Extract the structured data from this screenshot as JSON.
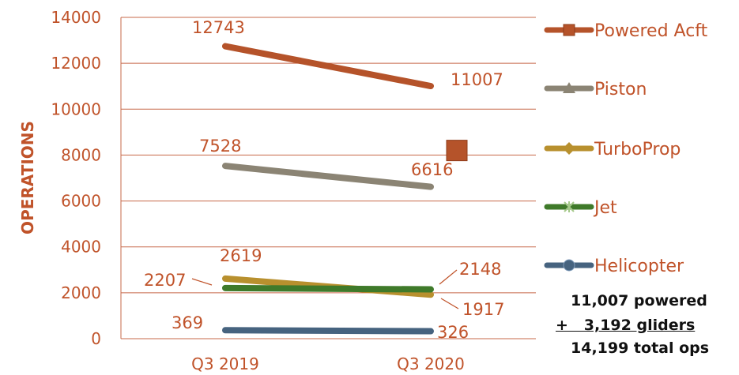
{
  "chart_data": {
    "type": "line",
    "categories": [
      "Q3 2019",
      "Q3 2020"
    ],
    "ylabel": "OPERATIONS",
    "ylim": [
      0,
      14000
    ],
    "yticks": [
      0,
      2000,
      4000,
      6000,
      8000,
      10000,
      12000,
      14000
    ],
    "grid": true,
    "legend": "right",
    "series": [
      {
        "name": "Powered Acft",
        "values": [
          12743,
          11007
        ],
        "color": "#b5532a",
        "marker": "square"
      },
      {
        "name": "Piston",
        "values": [
          7528,
          6616
        ],
        "color": "#8b8474",
        "marker": "triangle"
      },
      {
        "name": "TurboProp",
        "values": [
          2619,
          1917
        ],
        "color": "#b8902e",
        "marker": "diamond"
      },
      {
        "name": "Jet",
        "values": [
          2207,
          2148
        ],
        "color": "#3f7a2a",
        "marker": "star"
      },
      {
        "name": "Helicopter",
        "values": [
          369,
          326
        ],
        "color": "#46637f",
        "marker": "circle"
      }
    ],
    "annotations": [
      {
        "type": "point-marker",
        "series": "Powered Acft",
        "category": "Q3 2020",
        "value": 8200
      }
    ]
  },
  "notes": {
    "line1": "11,007 powered",
    "line2": "+   3,192 gliders",
    "line3": "14,199 total ops"
  }
}
